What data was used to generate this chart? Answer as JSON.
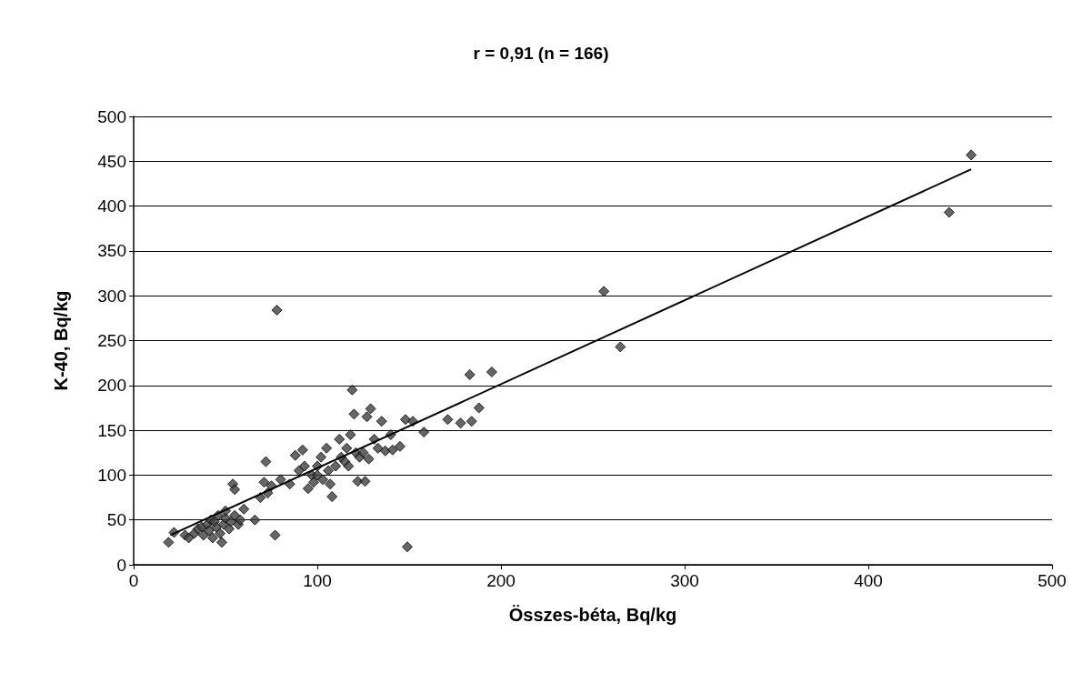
{
  "chart_data": {
    "type": "scatter",
    "title": "r = 0,91 (n = 166)",
    "xlabel": "Összes-béta, Bq/kg",
    "ylabel": "K-40, Bq/kg",
    "xlim": [
      0,
      500
    ],
    "xticks": [
      0,
      100,
      200,
      300,
      400,
      500
    ],
    "ylim": [
      0,
      500
    ],
    "yticks": [
      0,
      50,
      100,
      150,
      200,
      250,
      300,
      350,
      400,
      450,
      500
    ],
    "grid": "y",
    "marker": "diamond",
    "series": [
      {
        "color": "#404040",
        "x": [
          19,
          22,
          28,
          30,
          33,
          35,
          37,
          38,
          40,
          41,
          42,
          43,
          44,
          45,
          46,
          47,
          48,
          49,
          50,
          50,
          52,
          53,
          54,
          55,
          55,
          57,
          58,
          60,
          66,
          69,
          71,
          72,
          73,
          75,
          77,
          78,
          80,
          85,
          88,
          90,
          92,
          93,
          95,
          97,
          98,
          100,
          100,
          102,
          103,
          105,
          106,
          107,
          108,
          110,
          112,
          113,
          115,
          116,
          117,
          118,
          119,
          120,
          121,
          122,
          123,
          125,
          126,
          127,
          128,
          129,
          131,
          133,
          135,
          137,
          140,
          141,
          145,
          148,
          149,
          152,
          158,
          171,
          178,
          183,
          184,
          188,
          195,
          256,
          265,
          444,
          456
        ],
        "values": [
          25,
          36,
          33,
          30,
          35,
          40,
          42,
          33,
          45,
          38,
          50,
          30,
          48,
          42,
          55,
          35,
          25,
          45,
          52,
          60,
          40,
          48,
          90,
          84,
          55,
          45,
          50,
          62,
          50,
          75,
          92,
          115,
          80,
          88,
          33,
          284,
          95,
          90,
          122,
          105,
          128,
          110,
          85,
          100,
          92,
          110,
          100,
          120,
          95,
          130,
          105,
          90,
          76,
          110,
          140,
          120,
          115,
          130,
          110,
          145,
          195,
          168,
          125,
          93,
          120,
          125,
          93,
          165,
          118,
          174,
          140,
          130,
          160,
          127,
          145,
          128,
          132,
          162,
          20,
          160,
          148,
          162,
          158,
          212,
          160,
          175,
          215,
          305,
          243,
          393,
          457
        ]
      },
      {
        "type": "line",
        "color": "#000000",
        "marker": "none",
        "line_style": "solid",
        "x": [
          20,
          456
        ],
        "values": [
          33,
          441
        ]
      }
    ]
  }
}
